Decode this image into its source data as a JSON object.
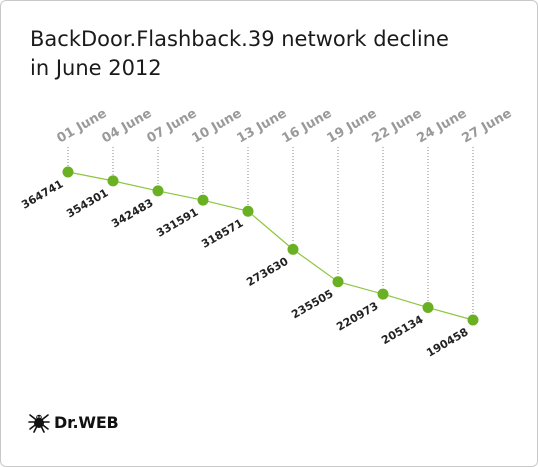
{
  "title_line1": "BackDoor.Flashback.39 network decline",
  "title_line2": "in June 2012",
  "logo": {
    "text": "Dr.WEB",
    "icon": "spider-icon"
  },
  "colors": {
    "line": "#8dc63f",
    "marker": "#6ab023",
    "guide": "#8a8a8a",
    "date_text": "#9a9a9a",
    "value_text": "#222222"
  },
  "chart_data": {
    "type": "line",
    "title": "BackDoor.Flashback.39 network decline in June 2012",
    "categories": [
      "01 June",
      "04 June",
      "07 June",
      "10 June",
      "13 June",
      "16 June",
      "19 June",
      "22 June",
      "24 June",
      "27 June"
    ],
    "series": [
      {
        "values": [
          364741,
          354301,
          342483,
          331591,
          318571,
          273630,
          235505,
          220973,
          205134,
          190458
        ]
      }
    ],
    "ylim": [
      190458,
      364741
    ],
    "grid": false
  }
}
